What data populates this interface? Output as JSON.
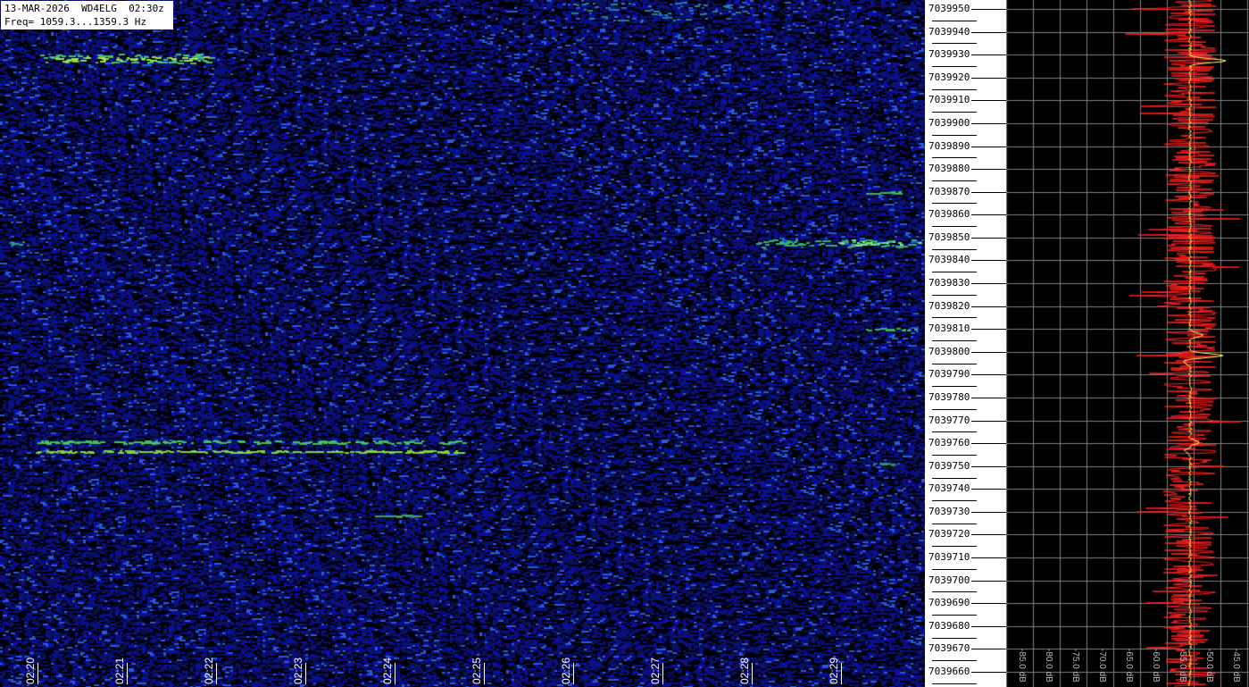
{
  "chart_data": {
    "type": "heatmap",
    "header": {
      "line1": "13-MAR-2026  WD4ELG  02:30z",
      "line2": "Freq= 1059.3...1359.3 Hz"
    },
    "x_tick_labels": [
      "02:20",
      "02:21",
      "02:22",
      "02:23",
      "02:24",
      "02:25",
      "02:26",
      "02:27",
      "02:28",
      "02:29"
    ],
    "y_tick_labels": [
      "7039950",
      "7039940",
      "7039930",
      "7039920",
      "7039910",
      "7039900",
      "7039890",
      "7039880",
      "7039870",
      "7039860",
      "7039850",
      "7039840",
      "7039830",
      "7039820",
      "7039810",
      "7039800",
      "7039790",
      "7039780",
      "7039770",
      "7039760",
      "7039750",
      "7039740",
      "7039730",
      "7039720",
      "7039710",
      "7039700",
      "7039690",
      "7039680",
      "7039670",
      "7039660"
    ],
    "ylim": [
      7039660,
      7039950
    ],
    "spectrum": {
      "db_tick_labels": [
        "-85.0 dB",
        "-80.0 dB",
        "-75.0 dB",
        "-70.0 dB",
        "-65.0 dB",
        "-60.0 dB",
        "-55.0 dB",
        "-50.0 dB",
        "-45.0 dB"
      ],
      "grid": true,
      "colors": {
        "instant": "#ff2020",
        "average": "#ffff60"
      }
    },
    "colors": {
      "background": "#000010",
      "noise": "#2030c0",
      "signal": "#40d060"
    }
  }
}
